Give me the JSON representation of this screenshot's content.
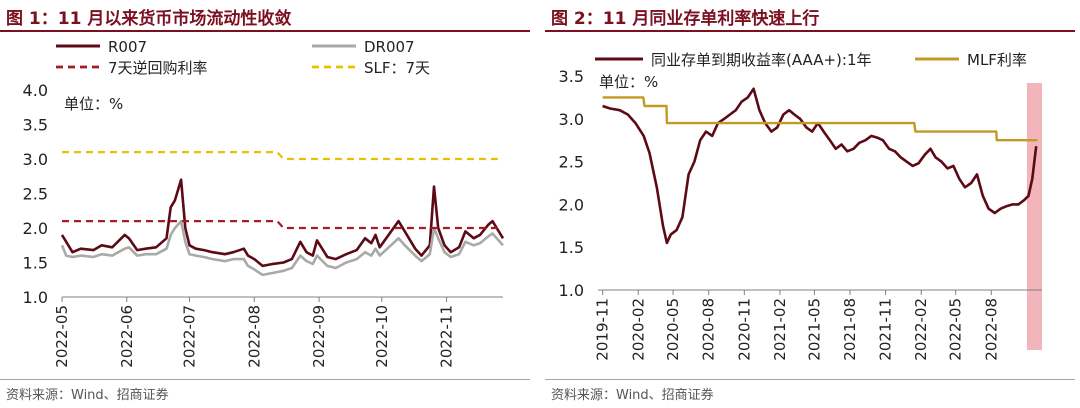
{
  "colors": {
    "brand": "#7b1020",
    "r007": "#5c0a16",
    "dr007": "#a9a9a9",
    "repo7d": "#a51d24",
    "slf": "#e6c200",
    "cd": "#5c0a16",
    "mlf": "#c49a26",
    "shade": "#f2b5bb"
  },
  "chart_data": [
    {
      "type": "line",
      "title": "图 1：11 月以来货币市场流动性收敛",
      "unit_label": "单位：%",
      "source": "资料来源：Wind、招商证券",
      "xlabel": "",
      "ylabel": "",
      "ylim": [
        1.0,
        4.0
      ],
      "y_ticks": [
        "1.0",
        "1.5",
        "2.0",
        "2.5",
        "3.0",
        "3.5",
        "4.0"
      ],
      "x_ticks": [
        "2022-05",
        "2022-06",
        "2022-07",
        "2022-08",
        "2022-09",
        "2022-10",
        "2022-11"
      ],
      "xlim": [
        "2022-05-01",
        "2022-11-28"
      ],
      "legend_position": "top",
      "series": [
        {
          "name": "R007",
          "style": "solid",
          "x": [
            "2022-05-01",
            "2022-05-03",
            "2022-05-06",
            "2022-05-10",
            "2022-05-16",
            "2022-05-20",
            "2022-05-25",
            "2022-05-31",
            "2022-06-02",
            "2022-06-06",
            "2022-06-10",
            "2022-06-15",
            "2022-06-20",
            "2022-06-22",
            "2022-06-24",
            "2022-06-27",
            "2022-06-29",
            "2022-07-01",
            "2022-07-04",
            "2022-07-08",
            "2022-07-12",
            "2022-07-18",
            "2022-07-22",
            "2022-07-27",
            "2022-07-29",
            "2022-08-01",
            "2022-08-05",
            "2022-08-10",
            "2022-08-15",
            "2022-08-19",
            "2022-08-23",
            "2022-08-26",
            "2022-08-29",
            "2022-08-31",
            "2022-09-05",
            "2022-09-09",
            "2022-09-14",
            "2022-09-19",
            "2022-09-23",
            "2022-09-26",
            "2022-09-28",
            "2022-09-30",
            "2022-10-09",
            "2022-10-12",
            "2022-10-17",
            "2022-10-20",
            "2022-10-24",
            "2022-10-26",
            "2022-10-28",
            "2022-10-31",
            "2022-11-03",
            "2022-11-07",
            "2022-11-10",
            "2022-11-14",
            "2022-11-17",
            "2022-11-21",
            "2022-11-23",
            "2022-11-25",
            "2022-11-28"
          ],
          "values": [
            1.9,
            1.8,
            1.65,
            1.7,
            1.68,
            1.75,
            1.72,
            1.9,
            1.85,
            1.68,
            1.7,
            1.72,
            1.85,
            2.3,
            2.4,
            2.7,
            2.0,
            1.75,
            1.7,
            1.68,
            1.65,
            1.62,
            1.65,
            1.7,
            1.6,
            1.55,
            1.45,
            1.48,
            1.5,
            1.55,
            1.8,
            1.65,
            1.6,
            1.82,
            1.58,
            1.55,
            1.62,
            1.68,
            1.85,
            1.78,
            1.9,
            1.72,
            2.1,
            1.95,
            1.7,
            1.6,
            1.75,
            2.6,
            2.0,
            1.75,
            1.65,
            1.72,
            1.95,
            1.85,
            1.9,
            2.05,
            2.1,
            2.0,
            1.85
          ]
        },
        {
          "name": "DR007",
          "style": "solid",
          "x": [
            "2022-05-01",
            "2022-05-03",
            "2022-05-06",
            "2022-05-10",
            "2022-05-16",
            "2022-05-20",
            "2022-05-25",
            "2022-05-31",
            "2022-06-02",
            "2022-06-06",
            "2022-06-10",
            "2022-06-15",
            "2022-06-20",
            "2022-06-22",
            "2022-06-24",
            "2022-06-27",
            "2022-06-29",
            "2022-07-01",
            "2022-07-04",
            "2022-07-08",
            "2022-07-12",
            "2022-07-18",
            "2022-07-22",
            "2022-07-27",
            "2022-07-29",
            "2022-08-01",
            "2022-08-05",
            "2022-08-10",
            "2022-08-15",
            "2022-08-19",
            "2022-08-23",
            "2022-08-26",
            "2022-08-29",
            "2022-08-31",
            "2022-09-05",
            "2022-09-09",
            "2022-09-14",
            "2022-09-19",
            "2022-09-23",
            "2022-09-26",
            "2022-09-28",
            "2022-09-30",
            "2022-10-09",
            "2022-10-12",
            "2022-10-17",
            "2022-10-20",
            "2022-10-24",
            "2022-10-26",
            "2022-10-28",
            "2022-10-31",
            "2022-11-03",
            "2022-11-07",
            "2022-11-10",
            "2022-11-14",
            "2022-11-17",
            "2022-11-21",
            "2022-11-23",
            "2022-11-25",
            "2022-11-28"
          ],
          "values": [
            1.75,
            1.6,
            1.58,
            1.6,
            1.58,
            1.62,
            1.6,
            1.7,
            1.72,
            1.6,
            1.62,
            1.62,
            1.7,
            1.9,
            2.0,
            2.1,
            1.8,
            1.62,
            1.6,
            1.58,
            1.55,
            1.52,
            1.55,
            1.55,
            1.45,
            1.4,
            1.32,
            1.35,
            1.38,
            1.42,
            1.6,
            1.52,
            1.48,
            1.6,
            1.45,
            1.42,
            1.5,
            1.55,
            1.65,
            1.6,
            1.7,
            1.6,
            1.85,
            1.75,
            1.6,
            1.52,
            1.62,
            2.0,
            1.85,
            1.65,
            1.58,
            1.62,
            1.8,
            1.75,
            1.78,
            1.88,
            1.92,
            1.85,
            1.75
          ]
        },
        {
          "name": "7天逆回购利率",
          "style": "dashed",
          "x": [
            "2022-05-01",
            "2022-08-12",
            "2022-08-15",
            "2022-11-28"
          ],
          "values": [
            2.1,
            2.1,
            2.0,
            2.0
          ]
        },
        {
          "name": "SLF：7天",
          "style": "dashed",
          "x": [
            "2022-05-01",
            "2022-08-12",
            "2022-08-15",
            "2022-11-28"
          ],
          "values": [
            3.1,
            3.1,
            3.0,
            3.0
          ]
        }
      ]
    },
    {
      "type": "line",
      "title": "图 2：11 月同业存单利率快速上行",
      "unit_label": "单位：%",
      "source": "资料来源：Wind、招商证券",
      "xlabel": "",
      "ylabel": "",
      "ylim": [
        1.0,
        3.5
      ],
      "y_ticks": [
        "1.0",
        "1.5",
        "2.0",
        "2.5",
        "3.0",
        "3.5"
      ],
      "x_ticks": [
        "2019-11",
        "2020-02",
        "2020-05",
        "2020-08",
        "2020-11",
        "2021-02",
        "2021-05",
        "2021-08",
        "2021-11",
        "2022-02",
        "2022-05",
        "2022-08"
      ],
      "xlim": [
        "2019-10-20",
        "2022-12-10"
      ],
      "legend_position": "top",
      "highlight_range": [
        "2022-11-01",
        "2022-12-10"
      ],
      "series": [
        {
          "name": "同业存单到期收益率(AAA+):1年",
          "style": "solid",
          "x": [
            "2019-11-01",
            "2019-11-20",
            "2019-12-15",
            "2020-01-05",
            "2020-01-25",
            "2020-02-15",
            "2020-03-01",
            "2020-03-20",
            "2020-04-05",
            "2020-04-15",
            "2020-04-25",
            "2020-05-10",
            "2020-05-25",
            "2020-06-10",
            "2020-06-25",
            "2020-07-10",
            "2020-07-25",
            "2020-08-10",
            "2020-08-25",
            "2020-09-10",
            "2020-09-25",
            "2020-10-10",
            "2020-10-25",
            "2020-11-10",
            "2020-11-25",
            "2020-12-10",
            "2020-12-25",
            "2021-01-10",
            "2021-01-25",
            "2021-02-10",
            "2021-02-25",
            "2021-03-10",
            "2021-03-25",
            "2021-04-10",
            "2021-04-25",
            "2021-05-10",
            "2021-05-25",
            "2021-06-10",
            "2021-06-25",
            "2021-07-10",
            "2021-07-25",
            "2021-08-10",
            "2021-08-25",
            "2021-09-10",
            "2021-09-25",
            "2021-10-10",
            "2021-10-25",
            "2021-11-10",
            "2021-11-25",
            "2021-12-10",
            "2021-12-25",
            "2022-01-10",
            "2022-01-25",
            "2022-02-10",
            "2022-02-25",
            "2022-03-10",
            "2022-03-25",
            "2022-04-10",
            "2022-04-25",
            "2022-05-10",
            "2022-05-25",
            "2022-06-10",
            "2022-06-25",
            "2022-07-10",
            "2022-07-25",
            "2022-08-10",
            "2022-08-25",
            "2022-09-10",
            "2022-09-25",
            "2022-10-10",
            "2022-10-25",
            "2022-11-05",
            "2022-11-15",
            "2022-11-25"
          ],
          "values": [
            3.15,
            3.12,
            3.1,
            3.05,
            2.95,
            2.8,
            2.6,
            2.2,
            1.75,
            1.55,
            1.65,
            1.7,
            1.85,
            2.35,
            2.5,
            2.75,
            2.85,
            2.8,
            2.95,
            3.0,
            3.05,
            3.1,
            3.2,
            3.25,
            3.35,
            3.1,
            2.95,
            2.85,
            2.9,
            3.05,
            3.1,
            3.05,
            3.0,
            2.9,
            2.85,
            2.95,
            2.85,
            2.75,
            2.65,
            2.7,
            2.62,
            2.65,
            2.72,
            2.75,
            2.8,
            2.78,
            2.75,
            2.65,
            2.62,
            2.55,
            2.5,
            2.45,
            2.48,
            2.58,
            2.65,
            2.55,
            2.5,
            2.42,
            2.45,
            2.3,
            2.2,
            2.25,
            2.35,
            2.1,
            1.95,
            1.9,
            1.95,
            1.98,
            2.0,
            2.0,
            2.05,
            2.1,
            2.3,
            2.68
          ]
        },
        {
          "name": "MLF利率",
          "style": "solid",
          "x": [
            "2019-11-01",
            "2019-11-15",
            "2019-11-18",
            "2020-02-14",
            "2020-02-17",
            "2020-04-14",
            "2020-04-15",
            "2022-01-14",
            "2022-01-17",
            "2022-08-14",
            "2022-08-15",
            "2022-11-28"
          ],
          "values": [
            3.25,
            3.25,
            3.25,
            3.25,
            3.15,
            3.15,
            2.95,
            2.95,
            2.85,
            2.85,
            2.75,
            2.75
          ]
        }
      ]
    }
  ]
}
